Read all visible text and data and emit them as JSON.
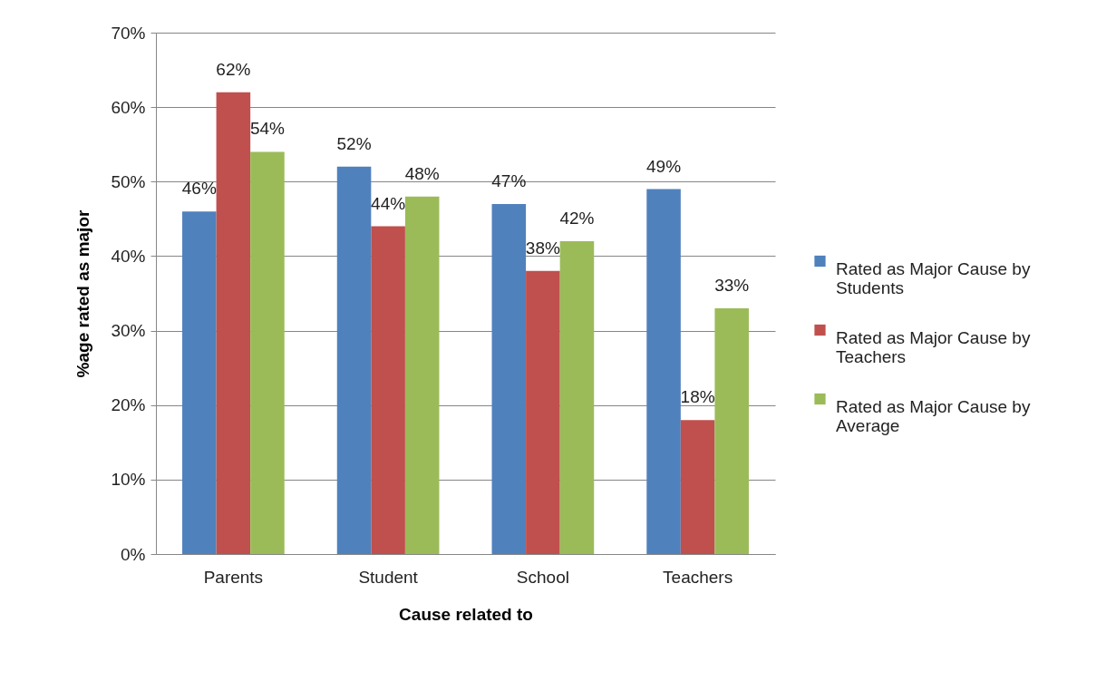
{
  "chart_data": {
    "type": "bar",
    "xlabel": "Cause related to",
    "ylabel": "%age rated as major",
    "categories": [
      "Parents",
      "Student",
      "School",
      "Teachers"
    ],
    "series": [
      {
        "name": "Rated as Major Cause by Students",
        "color": "#4f81bd",
        "values": [
          46,
          52,
          47,
          49
        ],
        "value_labels": [
          "46%",
          "52%",
          "47%",
          "49%"
        ]
      },
      {
        "name": "Rated as Major Cause by Teachers",
        "color": "#c0504d",
        "values": [
          62,
          44,
          38,
          18
        ],
        "value_labels": [
          "62%",
          "44%",
          "38%",
          "18%"
        ]
      },
      {
        "name": "Rated as Major Cause by Average",
        "color": "#9bbb59",
        "values": [
          54,
          48,
          42,
          33
        ],
        "value_labels": [
          "54%",
          "48%",
          "42%",
          "33%"
        ]
      }
    ],
    "ylim": [
      0,
      70
    ],
    "yticks": [
      {
        "value": 0,
        "label": "0%"
      },
      {
        "value": 10,
        "label": "10%"
      },
      {
        "value": 20,
        "label": "20%"
      },
      {
        "value": 30,
        "label": "30%"
      },
      {
        "value": 40,
        "label": "40%"
      },
      {
        "value": 50,
        "label": "50%"
      },
      {
        "value": 60,
        "label": "60%"
      },
      {
        "value": 70,
        "label": "70%"
      }
    ],
    "grid": "y",
    "legend": "right"
  }
}
